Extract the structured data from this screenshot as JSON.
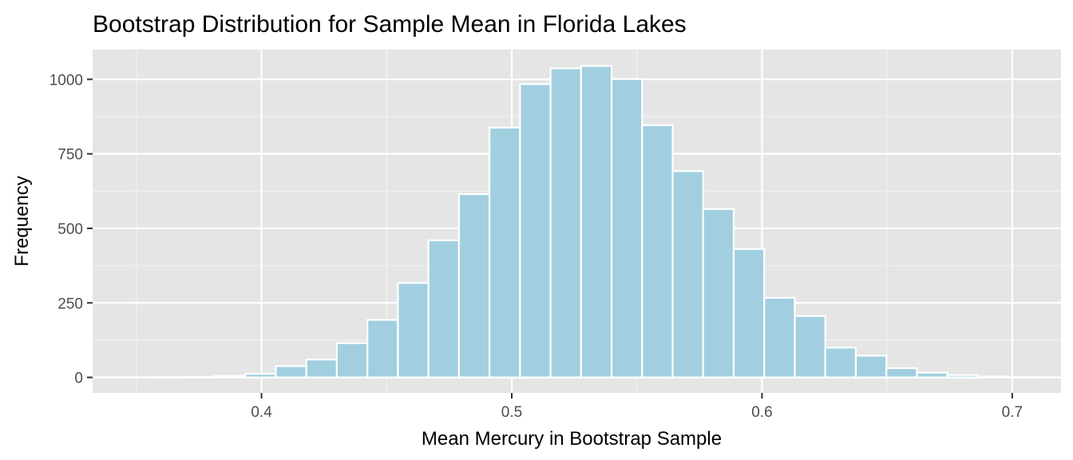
{
  "chart_data": {
    "type": "bar",
    "title": "Bootstrap Distribution for Sample Mean in Florida Lakes",
    "xlabel": "Mean Mercury in Bootstrap Sample",
    "ylabel": "Frequency",
    "bin_width": 0.0122,
    "bin_centers": [
      0.363,
      0.3752,
      0.3874,
      0.3996,
      0.4118,
      0.424,
      0.4362,
      0.4484,
      0.4606,
      0.4728,
      0.485,
      0.4972,
      0.5094,
      0.5216,
      0.5338,
      0.546,
      0.5582,
      0.5704,
      0.5826,
      0.5948,
      0.607,
      0.6192,
      0.6314,
      0.6436,
      0.6558,
      0.668,
      0.6802,
      0.6924,
      0.7046
    ],
    "values": [
      1,
      2,
      5,
      12,
      38,
      60,
      115,
      193,
      317,
      460,
      615,
      838,
      984,
      1037,
      1045,
      1001,
      846,
      692,
      565,
      431,
      267,
      206,
      100,
      73,
      31,
      16,
      8,
      3,
      1
    ],
    "xlim": [
      0.3325,
      0.7195
    ],
    "ylim": [
      -52,
      1100
    ],
    "x_ticks": [
      0.4,
      0.5,
      0.6,
      0.7
    ],
    "x_tick_labels": [
      "0.4",
      "0.5",
      "0.6",
      "0.7"
    ],
    "y_ticks": [
      0,
      250,
      500,
      750,
      1000
    ],
    "y_tick_labels": [
      "0",
      "250",
      "500",
      "750",
      "1000"
    ],
    "grid": true,
    "legend": "none",
    "colors": {
      "bar_fill": "#a1cfe0",
      "bar_outline": "#ffffff",
      "panel_background": "#e5e5e5",
      "grid_major": "#ffffff",
      "grid_minor": "#f2f2f2",
      "tick_text": "#4d4d4d",
      "tick_mark": "#333333"
    }
  }
}
